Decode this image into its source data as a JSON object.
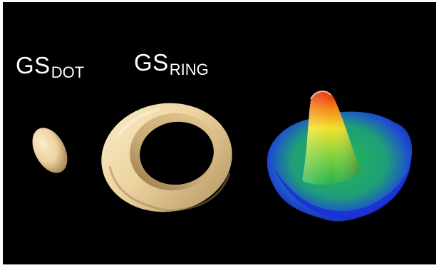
{
  "labels": {
    "dot": {
      "main": "GS",
      "sub": "DOT"
    },
    "ring": {
      "main": "GS",
      "sub": "RING"
    }
  },
  "colors": {
    "background": "#000000",
    "surface_tan": "#f0d9a8",
    "surface_shadow": "#b89a66",
    "plot_low": "#1f2bd8",
    "plot_mid": "#21b34a",
    "plot_high": "#f3e326",
    "plot_peak": "#e02010"
  },
  "figures": [
    {
      "name": "dot-shape",
      "kind": "ellipsoid"
    },
    {
      "name": "ring-shape",
      "kind": "torus"
    },
    {
      "name": "density-plot",
      "kind": "3d-surface"
    }
  ]
}
